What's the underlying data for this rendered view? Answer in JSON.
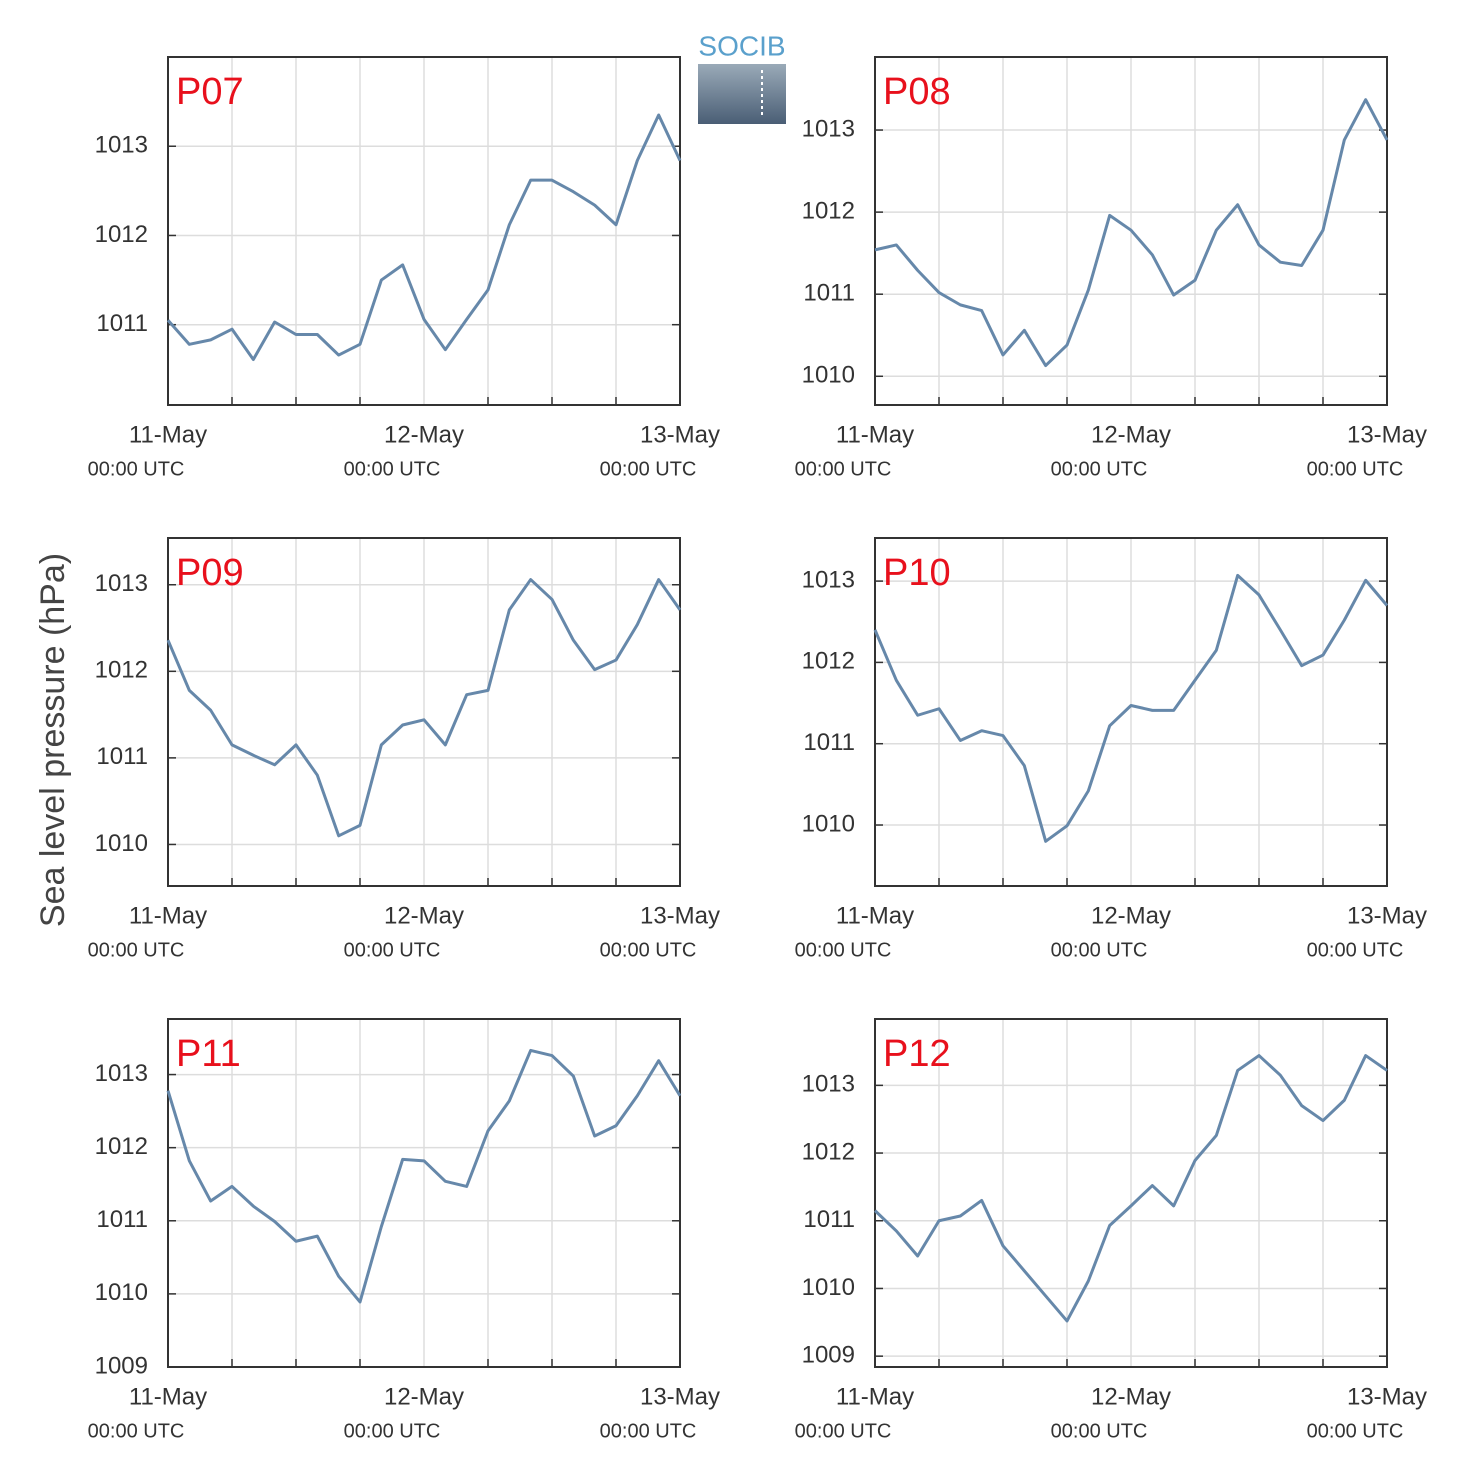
{
  "logo": "SOCIB",
  "ylabel": "Sea level pressure (hPa)",
  "chart_data": [
    {
      "type": "line",
      "title": "P07",
      "x": [
        0,
        2,
        4,
        6,
        8,
        10,
        12,
        14,
        16,
        18,
        20,
        22,
        24,
        26,
        28,
        30,
        32,
        34,
        36,
        38,
        40,
        42,
        44,
        46,
        48
      ],
      "series": [
        {
          "name": "P07",
          "color": "#6688aa",
          "values": [
            1011.05,
            1010.78,
            1010.83,
            1010.95,
            1010.61,
            1011.03,
            1010.89,
            1010.89,
            1010.66,
            1010.78,
            1011.5,
            1011.67,
            1011.06,
            1010.72,
            1011.06,
            1011.39,
            1012.12,
            1012.62,
            1012.62,
            1012.49,
            1012.34,
            1012.12,
            1012.84,
            1013.35,
            1012.84
          ]
        }
      ],
      "xlim": [
        0,
        48
      ],
      "xticks": [
        {
          "value": 0,
          "label": "11-May",
          "sublabel": "00:00 UTC"
        },
        {
          "value": 24,
          "label": "12-May",
          "sublabel": "00:00 UTC"
        },
        {
          "value": 48,
          "label": "13-May",
          "sublabel": "00:00 UTC"
        }
      ],
      "xminor": [
        6,
        12,
        18,
        30,
        36,
        42
      ],
      "ylim": [
        1010.1,
        1014.0
      ],
      "yticks": [
        1011,
        1012,
        1013
      ],
      "grid": true
    },
    {
      "type": "line",
      "title": "P08",
      "x": [
        0,
        2,
        4,
        6,
        8,
        10,
        12,
        14,
        16,
        18,
        20,
        22,
        24,
        26,
        28,
        30,
        32,
        34,
        36,
        38,
        40,
        42,
        44,
        46,
        48
      ],
      "series": [
        {
          "name": "P08",
          "color": "#6688aa",
          "values": [
            1011.54,
            1011.6,
            1011.29,
            1011.02,
            1010.87,
            1010.8,
            1010.26,
            1010.56,
            1010.13,
            1010.38,
            1011.05,
            1011.96,
            1011.78,
            1011.48,
            1010.99,
            1011.17,
            1011.78,
            1012.09,
            1011.6,
            1011.39,
            1011.35,
            1011.78,
            1012.88,
            1013.37,
            1012.88
          ]
        }
      ],
      "xlim": [
        0,
        48
      ],
      "xticks": [
        {
          "value": 0,
          "label": "11-May",
          "sublabel": "00:00 UTC"
        },
        {
          "value": 24,
          "label": "12-May",
          "sublabel": "00:00 UTC"
        },
        {
          "value": 48,
          "label": "13-May",
          "sublabel": "00:00 UTC"
        }
      ],
      "xminor": [
        6,
        12,
        18,
        30,
        36,
        42
      ],
      "ylim": [
        1009.65,
        1013.89
      ],
      "yticks": [
        1010,
        1011,
        1012,
        1013
      ],
      "grid": true
    },
    {
      "type": "line",
      "title": "P09",
      "x": [
        0,
        2,
        4,
        6,
        8,
        10,
        12,
        14,
        16,
        18,
        20,
        22,
        24,
        26,
        28,
        30,
        32,
        34,
        36,
        38,
        40,
        42,
        44,
        46,
        48
      ],
      "series": [
        {
          "name": "P09",
          "color": "#6688aa",
          "values": [
            1012.36,
            1011.78,
            1011.55,
            1011.15,
            1011.03,
            1010.92,
            1011.15,
            1010.8,
            1010.1,
            1010.22,
            1011.15,
            1011.38,
            1011.44,
            1011.15,
            1011.73,
            1011.78,
            1012.71,
            1013.06,
            1012.83,
            1012.36,
            1012.02,
            1012.13,
            1012.54,
            1013.06,
            1012.71
          ]
        }
      ],
      "xlim": [
        0,
        48
      ],
      "xticks": [
        {
          "value": 0,
          "label": "11-May",
          "sublabel": "00:00 UTC"
        },
        {
          "value": 24,
          "label": "12-May",
          "sublabel": "00:00 UTC"
        },
        {
          "value": 48,
          "label": "13-May",
          "sublabel": "00:00 UTC"
        }
      ],
      "xminor": [
        6,
        12,
        18,
        30,
        36,
        42
      ],
      "ylim": [
        1009.52,
        1013.54
      ],
      "yticks": [
        1010,
        1011,
        1012,
        1013
      ],
      "grid": true
    },
    {
      "type": "line",
      "title": "P10",
      "x": [
        0,
        2,
        4,
        6,
        8,
        10,
        12,
        14,
        16,
        18,
        20,
        22,
        24,
        26,
        28,
        30,
        32,
        34,
        36,
        38,
        40,
        42,
        44,
        46,
        48
      ],
      "series": [
        {
          "name": "P10",
          "color": "#6688aa",
          "values": [
            1012.4,
            1011.78,
            1011.35,
            1011.43,
            1011.04,
            1011.16,
            1011.1,
            1010.73,
            1009.8,
            1009.99,
            1010.42,
            1011.22,
            1011.47,
            1011.41,
            1011.41,
            1011.78,
            1012.15,
            1013.07,
            1012.83,
            1012.4,
            1011.96,
            1012.09,
            1012.52,
            1013.01,
            1012.7
          ]
        }
      ],
      "xlim": [
        0,
        48
      ],
      "xticks": [
        {
          "value": 0,
          "label": "11-May",
          "sublabel": "00:00 UTC"
        },
        {
          "value": 24,
          "label": "12-May",
          "sublabel": "00:00 UTC"
        },
        {
          "value": 48,
          "label": "13-May",
          "sublabel": "00:00 UTC"
        }
      ],
      "xminor": [
        6,
        12,
        18,
        30,
        36,
        42
      ],
      "ylim": [
        1009.25,
        1013.53
      ],
      "yticks": [
        1010,
        1011,
        1012,
        1013
      ],
      "grid": true
    },
    {
      "type": "line",
      "title": "P11",
      "x": [
        0,
        2,
        4,
        6,
        8,
        10,
        12,
        14,
        16,
        18,
        20,
        22,
        24,
        26,
        28,
        30,
        32,
        34,
        36,
        38,
        40,
        42,
        44,
        46,
        48
      ],
      "series": [
        {
          "name": "P11",
          "color": "#6688aa",
          "values": [
            1012.78,
            1011.82,
            1011.27,
            1011.47,
            1011.2,
            1010.99,
            1010.72,
            1010.79,
            1010.24,
            1009.89,
            1010.92,
            1011.84,
            1011.82,
            1011.54,
            1011.47,
            1012.23,
            1012.64,
            1013.33,
            1013.26,
            1012.98,
            1012.16,
            1012.3,
            1012.71,
            1013.19,
            1012.71
          ]
        }
      ],
      "xlim": [
        0,
        48
      ],
      "xticks": [
        {
          "value": 0,
          "label": "11-May",
          "sublabel": "00:00 UTC"
        },
        {
          "value": 24,
          "label": "12-May",
          "sublabel": "00:00 UTC"
        },
        {
          "value": 48,
          "label": "13-May",
          "sublabel": "00:00 UTC"
        }
      ],
      "xminor": [
        6,
        12,
        18,
        30,
        36,
        42
      ],
      "ylim": [
        1009,
        1013.76
      ],
      "yticks": [
        1009,
        1010,
        1011,
        1012,
        1013
      ],
      "grid": true
    },
    {
      "type": "line",
      "title": "P12",
      "x": [
        0,
        2,
        4,
        6,
        8,
        10,
        12,
        14,
        16,
        18,
        20,
        22,
        24,
        26,
        28,
        30,
        32,
        34,
        36,
        38,
        40,
        42,
        44,
        46,
        48
      ],
      "series": [
        {
          "name": "P12",
          "color": "#6688aa",
          "values": [
            1011.15,
            1010.85,
            1010.48,
            1011,
            1011.07,
            1011.3,
            1010.63,
            1010.26,
            1009.89,
            1009.52,
            1010.11,
            1010.93,
            1011.22,
            1011.52,
            1011.22,
            1011.89,
            1012.26,
            1013.22,
            1013.44,
            1013.15,
            1012.7,
            1012.48,
            1012.78,
            1013.44,
            1013.22
          ]
        }
      ],
      "xlim": [
        0,
        48
      ],
      "xticks": [
        {
          "value": 0,
          "label": "11-May",
          "sublabel": "00:00 UTC"
        },
        {
          "value": 24,
          "label": "12-May",
          "sublabel": "00:00 UTC"
        },
        {
          "value": 48,
          "label": "13-May",
          "sublabel": "00:00 UTC"
        }
      ],
      "xminor": [
        6,
        12,
        18,
        30,
        36,
        42
      ],
      "ylim": [
        1008.84,
        1013.98
      ],
      "yticks": [
        1009,
        1010,
        1011,
        1012,
        1013
      ],
      "grid": true
    }
  ]
}
